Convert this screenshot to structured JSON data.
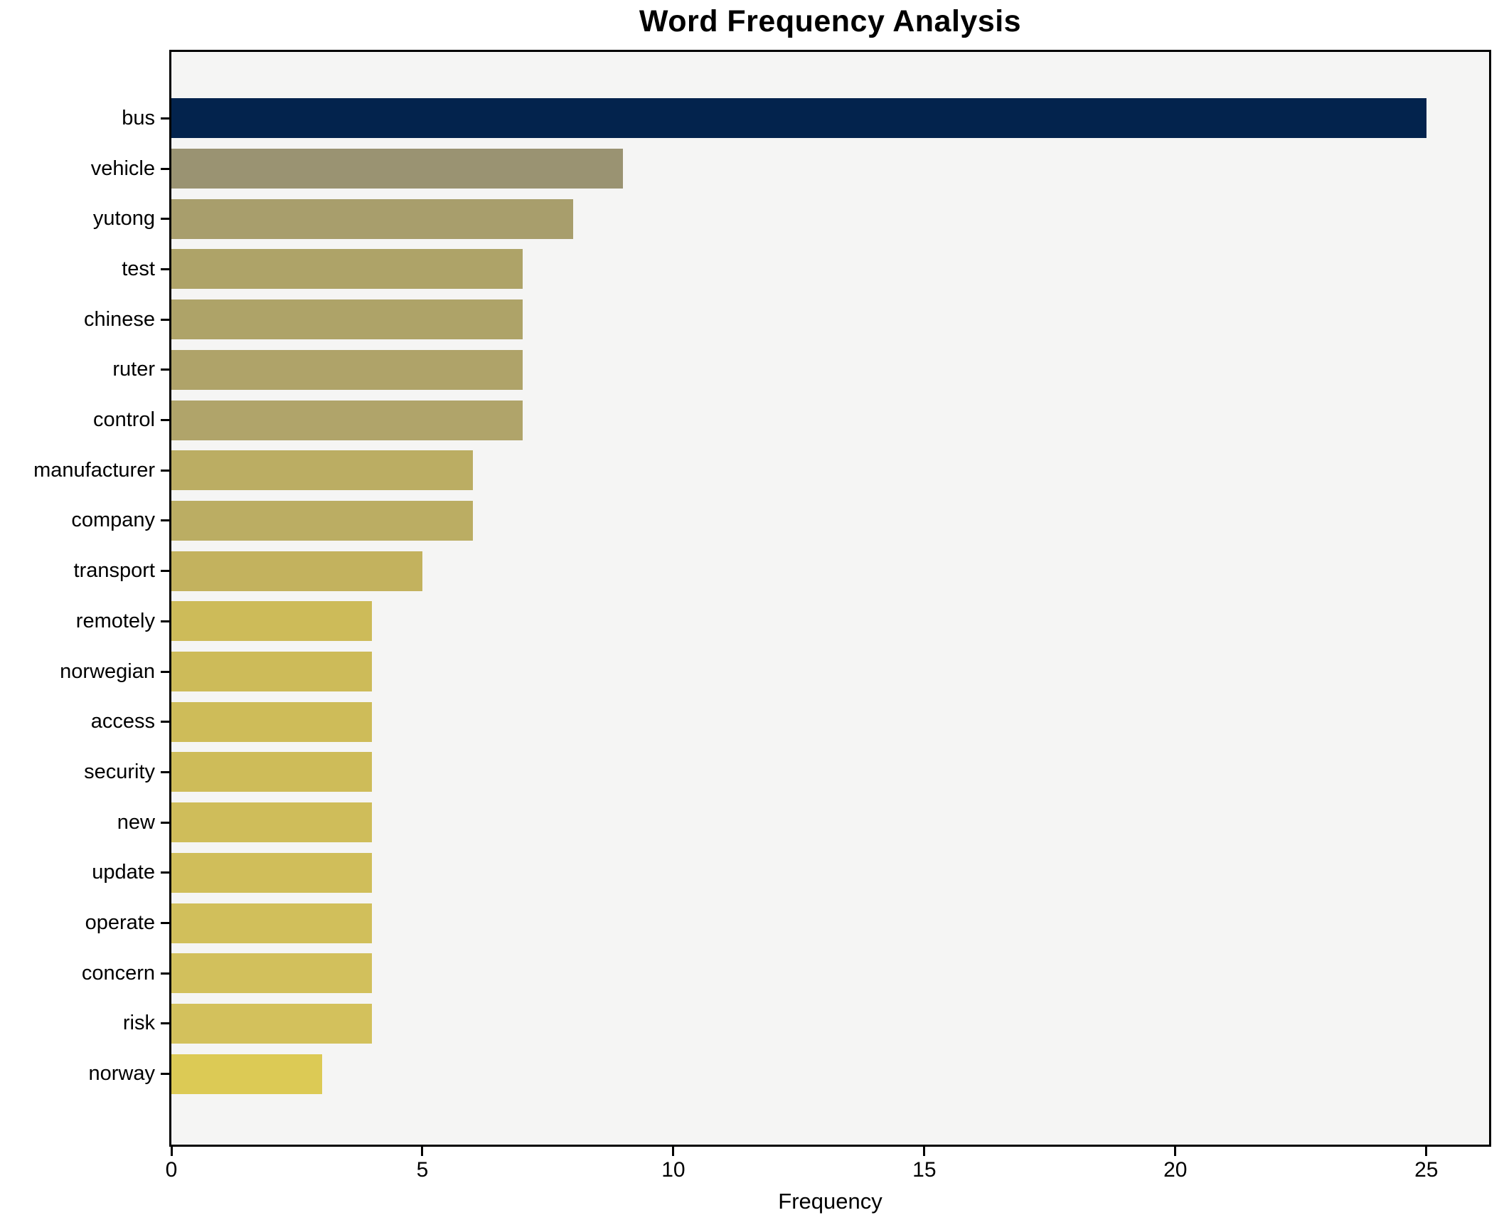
{
  "chart_data": {
    "type": "bar",
    "orientation": "horizontal",
    "title": "Word Frequency Analysis",
    "xlabel": "Frequency",
    "ylabel": "",
    "categories": [
      "bus",
      "vehicle",
      "yutong",
      "test",
      "chinese",
      "ruter",
      "control",
      "manufacturer",
      "company",
      "transport",
      "remotely",
      "norwegian",
      "access",
      "security",
      "new",
      "update",
      "operate",
      "concern",
      "risk",
      "norway"
    ],
    "values": [
      25,
      9,
      8,
      7,
      7,
      7,
      7,
      6,
      6,
      5,
      4,
      4,
      4,
      4,
      4,
      4,
      4,
      4,
      4,
      3
    ],
    "bar_colors": [
      "#03234d",
      "#9a9372",
      "#a89e6c",
      "#aea368",
      "#aea368",
      "#afa369",
      "#b0a46a",
      "#bbad63",
      "#bbad63",
      "#c3b25e",
      "#cdbb59",
      "#cdbb59",
      "#cebc59",
      "#cebc59",
      "#cfbd5a",
      "#d0be5a",
      "#d1bf5b",
      "#d2c05c",
      "#d3c15c",
      "#dcca55"
    ],
    "xticks": [
      0,
      5,
      10,
      15,
      20,
      25
    ],
    "xlim": [
      0,
      26.25
    ],
    "grid": false,
    "legend": false,
    "plot_background": "#f5f5f4",
    "spine_color": "#000000",
    "text_color": "#000000"
  }
}
